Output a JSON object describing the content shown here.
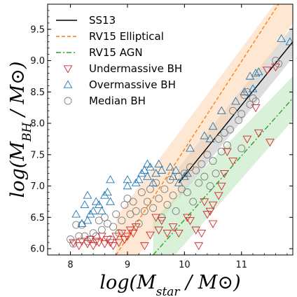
{
  "chart_data": {
    "type": "scatter",
    "title": "",
    "xlabel": "log(M_star / M_⊙)",
    "ylabel": "log(M_BH / M_⊙)",
    "xlim": [
      7.6,
      11.9
    ],
    "ylim": [
      5.9,
      9.9
    ],
    "x_ticks": [
      8,
      9,
      10,
      11
    ],
    "y_ticks": [
      6.0,
      6.5,
      7.0,
      7.5,
      8.0,
      8.5,
      9.0,
      9.5
    ],
    "x_tick_labels": [
      "8",
      "9",
      "10",
      "11"
    ],
    "y_tick_labels": [
      "6.0",
      "6.5",
      "7.0",
      "7.5",
      "8.0",
      "8.5",
      "9.0",
      "9.5"
    ],
    "grid": false,
    "legend_position": "top-left",
    "legend": [
      {
        "label": "SS13",
        "kind": "line",
        "color": "#000000",
        "dash": "solid"
      },
      {
        "label": "RV15 Elliptical",
        "kind": "line",
        "color": "#ff7f0e",
        "dash": "dashed"
      },
      {
        "label": "RV15 AGN",
        "kind": "line",
        "color": "#2ca02c",
        "dash": "dashdot"
      },
      {
        "label": "Undermassive BH",
        "kind": "triangle_down",
        "color": "#d62728"
      },
      {
        "label": "Overmassive BH",
        "kind": "triangle_up",
        "color": "#1f77b4"
      },
      {
        "label": "Median BH",
        "kind": "circle",
        "color": "#7f7f7f"
      }
    ],
    "relations": [
      {
        "name": "SS13",
        "color": "#000000",
        "dash": "solid",
        "x": [
          9.9,
          11.9
        ],
        "y": [
          7.05,
          9.3
        ],
        "band": {
          "color": "#bbbbbb",
          "opacity": 0.5,
          "x": [
            9.9,
            11.9
          ],
          "upper": [
            7.3,
            9.55
          ],
          "lower": [
            6.8,
            9.05
          ]
        }
      },
      {
        "name": "RV15 Elliptical",
        "color": "#ff7f0e",
        "dash": "dashed",
        "x": [
          8.8,
          11.65
        ],
        "y": [
          5.9,
          9.9
        ],
        "band": {
          "color": "#ffd8b5",
          "opacity": 0.6,
          "x": [
            8.8,
            11.9
          ],
          "upper": [
            6.5,
            10.3
          ],
          "lower": [
            5.35,
            9.6
          ]
        }
      },
      {
        "name": "RV15 AGN",
        "color": "#2ca02c",
        "dash": "dashdot",
        "x": [
          9.45,
          11.9
        ],
        "y": [
          5.9,
          8.4
        ],
        "band": {
          "color": "#bfe6bf",
          "opacity": 0.6,
          "x": [
            9.45,
            11.9
          ],
          "upper": [
            6.45,
            8.75
          ],
          "lower": [
            5.5,
            8.05
          ]
        }
      }
    ],
    "series": [
      {
        "name": "Undermassive BH",
        "marker": "triangle_down",
        "color": "#d62728",
        "points": [
          [
            8.05,
            6.1
          ],
          [
            8.15,
            6.05
          ],
          [
            8.2,
            6.12
          ],
          [
            8.3,
            6.08
          ],
          [
            8.35,
            6.15
          ],
          [
            8.4,
            6.05
          ],
          [
            8.45,
            6.12
          ],
          [
            8.5,
            6.1
          ],
          [
            8.55,
            6.2
          ],
          [
            8.6,
            6.08
          ],
          [
            8.65,
            6.15
          ],
          [
            8.7,
            6.1
          ],
          [
            8.75,
            6.05
          ],
          [
            8.8,
            6.2
          ],
          [
            8.85,
            6.1
          ],
          [
            8.9,
            6.25
          ],
          [
            8.95,
            6.15
          ],
          [
            9.0,
            6.2
          ],
          [
            9.05,
            6.3
          ],
          [
            9.1,
            6.25
          ],
          [
            9.15,
            6.35
          ],
          [
            9.3,
            6.05
          ],
          [
            9.4,
            6.22
          ],
          [
            9.5,
            6.5
          ],
          [
            9.55,
            6.3
          ],
          [
            9.6,
            6.45
          ],
          [
            9.7,
            6.25
          ],
          [
            9.8,
            6.35
          ],
          [
            9.9,
            6.25
          ],
          [
            10.05,
            6.5
          ],
          [
            10.1,
            6.45
          ],
          [
            10.2,
            6.3
          ],
          [
            10.25,
            6.05
          ],
          [
            10.3,
            6.25
          ],
          [
            10.35,
            6.75
          ],
          [
            10.4,
            6.55
          ],
          [
            10.45,
            6.6
          ],
          [
            10.5,
            6.7
          ],
          [
            10.5,
            6.4
          ],
          [
            10.6,
            6.85
          ],
          [
            10.65,
            7.0
          ],
          [
            10.7,
            7.2
          ],
          [
            10.75,
            7.55
          ],
          [
            10.85,
            7.4
          ],
          [
            11.1,
            7.75
          ],
          [
            11.3,
            7.85
          ],
          [
            11.5,
            7.7
          ],
          [
            11.25,
            8.25
          ],
          [
            11.45,
            8.85
          ],
          [
            11.6,
            8.9
          ]
        ]
      },
      {
        "name": "Overmassive BH",
        "marker": "triangle_up",
        "color": "#1f77b4",
        "points": [
          [
            8.1,
            6.55
          ],
          [
            8.2,
            6.4
          ],
          [
            8.25,
            6.7
          ],
          [
            8.3,
            6.45
          ],
          [
            8.3,
            6.85
          ],
          [
            8.35,
            6.55
          ],
          [
            8.4,
            6.6
          ],
          [
            8.45,
            6.75
          ],
          [
            8.5,
            6.7
          ],
          [
            8.55,
            6.6
          ],
          [
            8.6,
            6.85
          ],
          [
            8.65,
            6.9
          ],
          [
            8.7,
            6.75
          ],
          [
            8.7,
            7.1
          ],
          [
            9.0,
            7.0
          ],
          [
            9.0,
            7.1
          ],
          [
            9.15,
            7.05
          ],
          [
            9.2,
            7.1
          ],
          [
            9.25,
            7.2
          ],
          [
            9.3,
            7.25
          ],
          [
            9.35,
            7.15
          ],
          [
            9.35,
            7.35
          ],
          [
            9.4,
            7.3
          ],
          [
            9.45,
            7.05
          ],
          [
            9.5,
            7.2
          ],
          [
            9.55,
            7.35
          ],
          [
            9.6,
            7.25
          ],
          [
            9.75,
            7.3
          ],
          [
            9.8,
            7.15
          ],
          [
            9.85,
            7.25
          ],
          [
            9.9,
            7.05
          ],
          [
            10.0,
            7.15
          ],
          [
            10.05,
            7.2
          ],
          [
            10.1,
            7.6
          ],
          [
            10.35,
            7.8
          ],
          [
            10.45,
            7.75
          ],
          [
            10.5,
            7.95
          ],
          [
            10.65,
            8.2
          ],
          [
            10.9,
            8.35
          ],
          [
            11.05,
            8.5
          ],
          [
            11.15,
            8.75
          ],
          [
            11.2,
            8.55
          ],
          [
            11.25,
            8.8
          ],
          [
            11.3,
            8.82
          ],
          [
            11.7,
            9.35
          ],
          [
            11.85,
            9.3
          ]
        ]
      },
      {
        "name": "Median BH",
        "marker": "circle",
        "color": "#7f7f7f",
        "points": [
          [
            8.0,
            6.15
          ],
          [
            8.05,
            6.08
          ],
          [
            8.1,
            6.38
          ],
          [
            8.15,
            6.2
          ],
          [
            8.2,
            6.38
          ],
          [
            8.25,
            6.2
          ],
          [
            8.3,
            6.12
          ],
          [
            8.35,
            6.15
          ],
          [
            8.4,
            6.25
          ],
          [
            8.45,
            6.2
          ],
          [
            8.5,
            6.45
          ],
          [
            8.55,
            6.3
          ],
          [
            8.6,
            6.5
          ],
          [
            8.65,
            6.4
          ],
          [
            8.7,
            6.15
          ],
          [
            8.75,
            6.35
          ],
          [
            8.8,
            6.55
          ],
          [
            8.85,
            6.25
          ],
          [
            8.9,
            6.45
          ],
          [
            8.95,
            6.7
          ],
          [
            9.0,
            6.8
          ],
          [
            9.05,
            6.55
          ],
          [
            9.1,
            6.75
          ],
          [
            9.15,
            6.6
          ],
          [
            9.2,
            6.4
          ],
          [
            9.25,
            6.9
          ],
          [
            9.3,
            6.6
          ],
          [
            9.35,
            6.75
          ],
          [
            9.4,
            6.95
          ],
          [
            9.45,
            6.65
          ],
          [
            9.5,
            7.05
          ],
          [
            9.55,
            6.8
          ],
          [
            9.6,
            6.5
          ],
          [
            9.65,
            6.95
          ],
          [
            9.7,
            6.7
          ],
          [
            9.75,
            7.1
          ],
          [
            9.8,
            6.85
          ],
          [
            9.85,
            6.6
          ],
          [
            9.9,
            7.15
          ],
          [
            9.95,
            6.95
          ],
          [
            10.0,
            7.2
          ],
          [
            10.05,
            6.9
          ],
          [
            10.1,
            7.3
          ],
          [
            10.15,
            6.75
          ],
          [
            10.2,
            7.25
          ],
          [
            10.25,
            7.05
          ],
          [
            10.3,
            7.35
          ],
          [
            10.35,
            7.15
          ],
          [
            10.4,
            7.5
          ],
          [
            10.45,
            7.0
          ],
          [
            10.5,
            7.4
          ],
          [
            10.55,
            7.2
          ],
          [
            10.6,
            7.75
          ],
          [
            10.65,
            7.55
          ],
          [
            10.7,
            7.85
          ],
          [
            10.75,
            7.65
          ],
          [
            10.8,
            7.9
          ],
          [
            10.85,
            8.2
          ],
          [
            10.95,
            8.05
          ],
          [
            11.0,
            8.15
          ],
          [
            11.05,
            8.45
          ],
          [
            11.1,
            8.5
          ],
          [
            11.15,
            8.3
          ],
          [
            11.2,
            8.4
          ],
          [
            11.25,
            8.35
          ],
          [
            11.0,
            7.6
          ],
          [
            11.6,
            9.0
          ],
          [
            11.65,
            8.95
          ]
        ]
      }
    ]
  }
}
